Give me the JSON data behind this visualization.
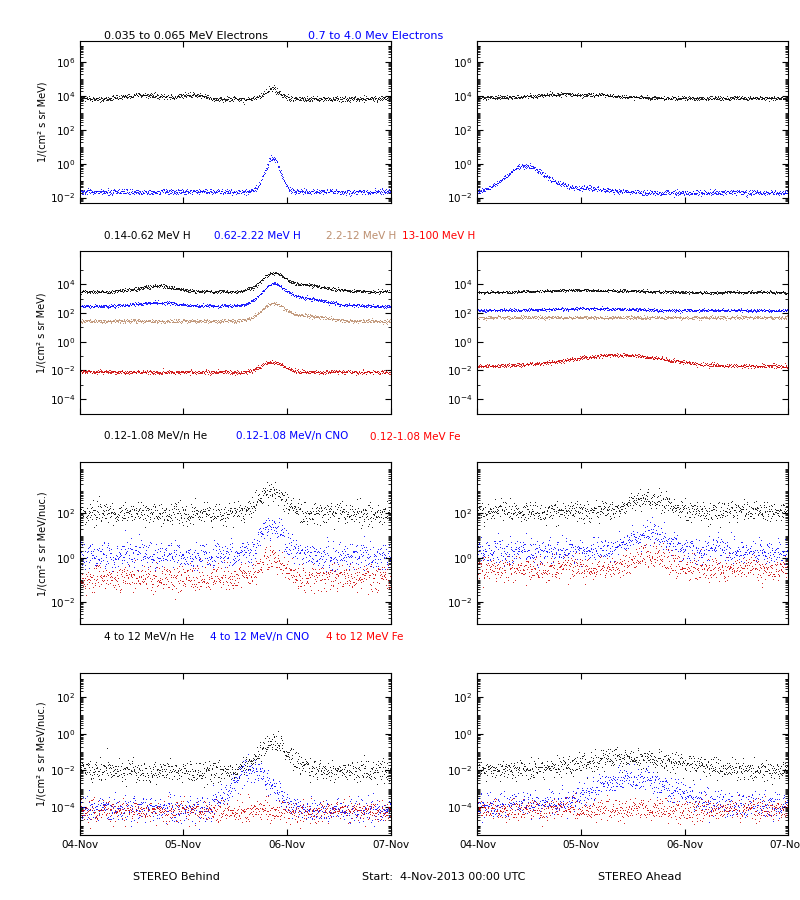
{
  "figure_size": [
    8.0,
    9.0
  ],
  "dpi": 100,
  "colors": {
    "black": "#000000",
    "blue": "#0000ff",
    "tan": "#bc8f6f",
    "red": "#cc0000"
  },
  "xtick_labels": [
    "04-Nov",
    "05-Nov",
    "06-Nov",
    "07-Nov"
  ],
  "n_points": 800,
  "row1": {
    "ylim": [
      0.005,
      20000000.0
    ],
    "yticks": [
      0.01,
      1.0,
      100.0,
      10000.0,
      1000000.0
    ]
  },
  "row2": {
    "ylim": [
      1e-05,
      2000000.0
    ],
    "yticks": [
      0.0001,
      0.01,
      1.0,
      100.0,
      10000.0
    ]
  },
  "row3": {
    "ylim": [
      0.001,
      20000.0
    ],
    "yticks": [
      0.01,
      1.0,
      100.0
    ]
  },
  "row4": {
    "ylim": [
      3e-06,
      2000.0
    ],
    "yticks": [
      0.0001,
      0.01,
      1.0,
      100.0
    ]
  },
  "row1_ylabel": "1/(cm² s sr MeV)",
  "row2_ylabel": "1/(cm² s sr MeV)",
  "row3_ylabel": "1/(cm² s sr MeV/nuc.)",
  "row4_ylabel": "1/(cm² s sr MeV/nuc.)",
  "title_row1_black": "0.035 to 0.065 MeV Electrons",
  "title_row1_blue": "0.7 to 4.0 Mev Electrons",
  "title_row2_1": "0.14-0.62 MeV H",
  "title_row2_2": "0.62-2.22 MeV H",
  "title_row2_3": "2.2-12 MeV H",
  "title_row2_4": "13-100 MeV H",
  "title_row3_1": "0.12-1.08 MeV/n He",
  "title_row3_2": "0.12-1.08 MeV/n CNO",
  "title_row3_3": "0.12-1.08 MeV Fe",
  "title_row4_1": "4 to 12 MeV/n He",
  "title_row4_2": "4 to 12 MeV/n CNO",
  "title_row4_3": "4 to 12 MeV Fe",
  "xlabel_left": "STEREO Behind",
  "xlabel_center": "Start:  4-Nov-2013 00:00 UTC",
  "xlabel_right": "STEREO Ahead"
}
